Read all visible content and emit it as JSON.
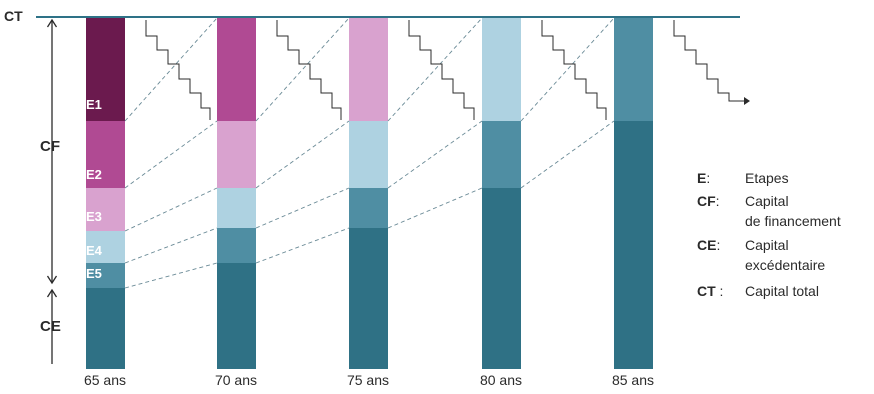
{
  "top_label": "CT",
  "side_labels": {
    "cf": "CF",
    "ce": "CE"
  },
  "stage_labels": [
    "E1",
    "E2",
    "E3",
    "E4",
    "E5"
  ],
  "ages": [
    "65 ans",
    "70 ans",
    "75 ans",
    "80 ans",
    "85 ans"
  ],
  "legend": [
    {
      "key": "E",
      "sep": ":",
      "lines": [
        "Etapes"
      ]
    },
    {
      "key": "CF",
      "sep": ":",
      "lines": [
        "Capital",
        "de financement"
      ]
    },
    {
      "key": "CE",
      "sep": ":",
      "lines": [
        "Capital",
        "excédentaire"
      ]
    },
    {
      "key": "CT",
      "sep": " :",
      "lines": [
        "Capital total"
      ]
    }
  ],
  "colors": {
    "e1": "#6b1a4e",
    "e2": "#b04a93",
    "e3": "#d9a2cf",
    "e4": "#aed2e1",
    "e5": "#4f8ea3",
    "ce": "#2f7185",
    "line": "#2e7287",
    "text": "#2b2b2b"
  },
  "bars": [
    {
      "age": "65 ans",
      "segments": [
        "e1",
        "e2",
        "e3",
        "e4",
        "e5",
        "ce"
      ]
    },
    {
      "age": "70 ans",
      "segments": [
        "e2",
        "e3",
        "e4",
        "e5",
        "ce"
      ]
    },
    {
      "age": "75 ans",
      "segments": [
        "e3",
        "e4",
        "e5",
        "ce"
      ]
    },
    {
      "age": "80 ans",
      "segments": [
        "e4",
        "e5",
        "ce"
      ]
    },
    {
      "age": "85 ans",
      "segments": [
        "e5",
        "ce"
      ]
    }
  ]
}
